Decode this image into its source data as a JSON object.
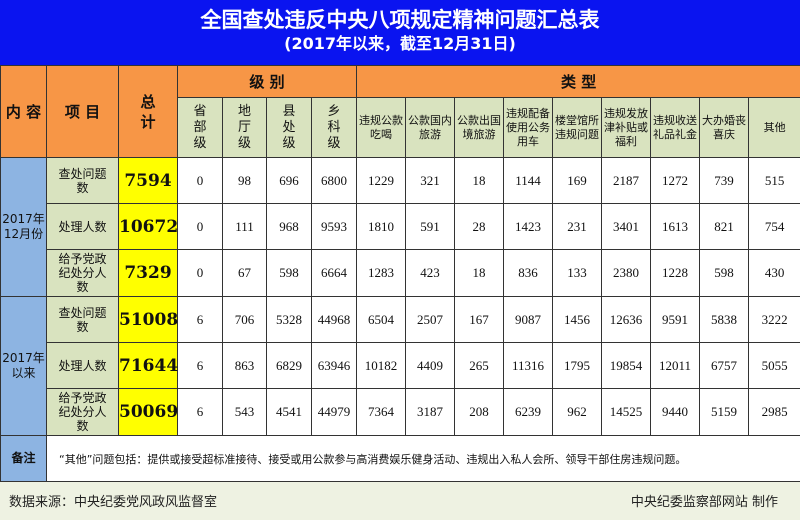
{
  "title": "全国查处违反中央八项规定精神问题汇总表",
  "subtitle": "(2017年以来，截至12月31日)",
  "headers": {
    "content": "内 容",
    "item": "项 目",
    "total": "总\n计",
    "level_group": "级  别",
    "type_group": "类  型",
    "levels": [
      "省\n部\n级",
      "地\n厅\n级",
      "县\n处\n级",
      "乡\n科\n级"
    ],
    "types": [
      "违规公款吃喝",
      "公款国内旅游",
      "公款出国境旅游",
      "违规配备使用公务用车",
      "楼堂馆所违规问题",
      "违规发放津补贴或福利",
      "违规收送礼品礼金",
      "大办婚丧喜庆",
      "其他"
    ]
  },
  "groups": [
    {
      "label": "2017年\n12月份",
      "rows": [
        {
          "item": "查处问题数",
          "total": "7594",
          "values": [
            "0",
            "98",
            "696",
            "6800",
            "1229",
            "321",
            "18",
            "1144",
            "169",
            "2187",
            "1272",
            "739",
            "515"
          ]
        },
        {
          "item": "处理人数",
          "total": "10672",
          "values": [
            "0",
            "111",
            "968",
            "9593",
            "1810",
            "591",
            "28",
            "1423",
            "231",
            "3401",
            "1613",
            "821",
            "754"
          ]
        },
        {
          "item": "给予党政纪处分人数",
          "total": "7329",
          "values": [
            "0",
            "67",
            "598",
            "6664",
            "1283",
            "423",
            "18",
            "836",
            "133",
            "2380",
            "1228",
            "598",
            "430"
          ]
        }
      ]
    },
    {
      "label": "2017年\n以来",
      "rows": [
        {
          "item": "查处问题数",
          "total": "51008",
          "values": [
            "6",
            "706",
            "5328",
            "44968",
            "6504",
            "2507",
            "167",
            "9087",
            "1456",
            "12636",
            "9591",
            "5838",
            "3222"
          ]
        },
        {
          "item": "处理人数",
          "total": "71644",
          "values": [
            "6",
            "863",
            "6829",
            "63946",
            "10182",
            "4409",
            "265",
            "11316",
            "1795",
            "19854",
            "12011",
            "6757",
            "5055"
          ]
        },
        {
          "item": "给予党政纪处分人数",
          "total": "50069",
          "values": [
            "6",
            "543",
            "4541",
            "44979",
            "7364",
            "3187",
            "208",
            "6239",
            "962",
            "14525",
            "9440",
            "5159",
            "2985"
          ]
        }
      ]
    }
  ],
  "note_label": "备注",
  "note": "“其他”问题包括：提供或接受超标准接待、接受或用公款参与高消费娱乐健身活动、违规出入私人会所、领导干部住房违规问题。",
  "source": "数据来源：中央纪委党风政风监督室",
  "credit": "中央纪委监察部网站 制作"
}
